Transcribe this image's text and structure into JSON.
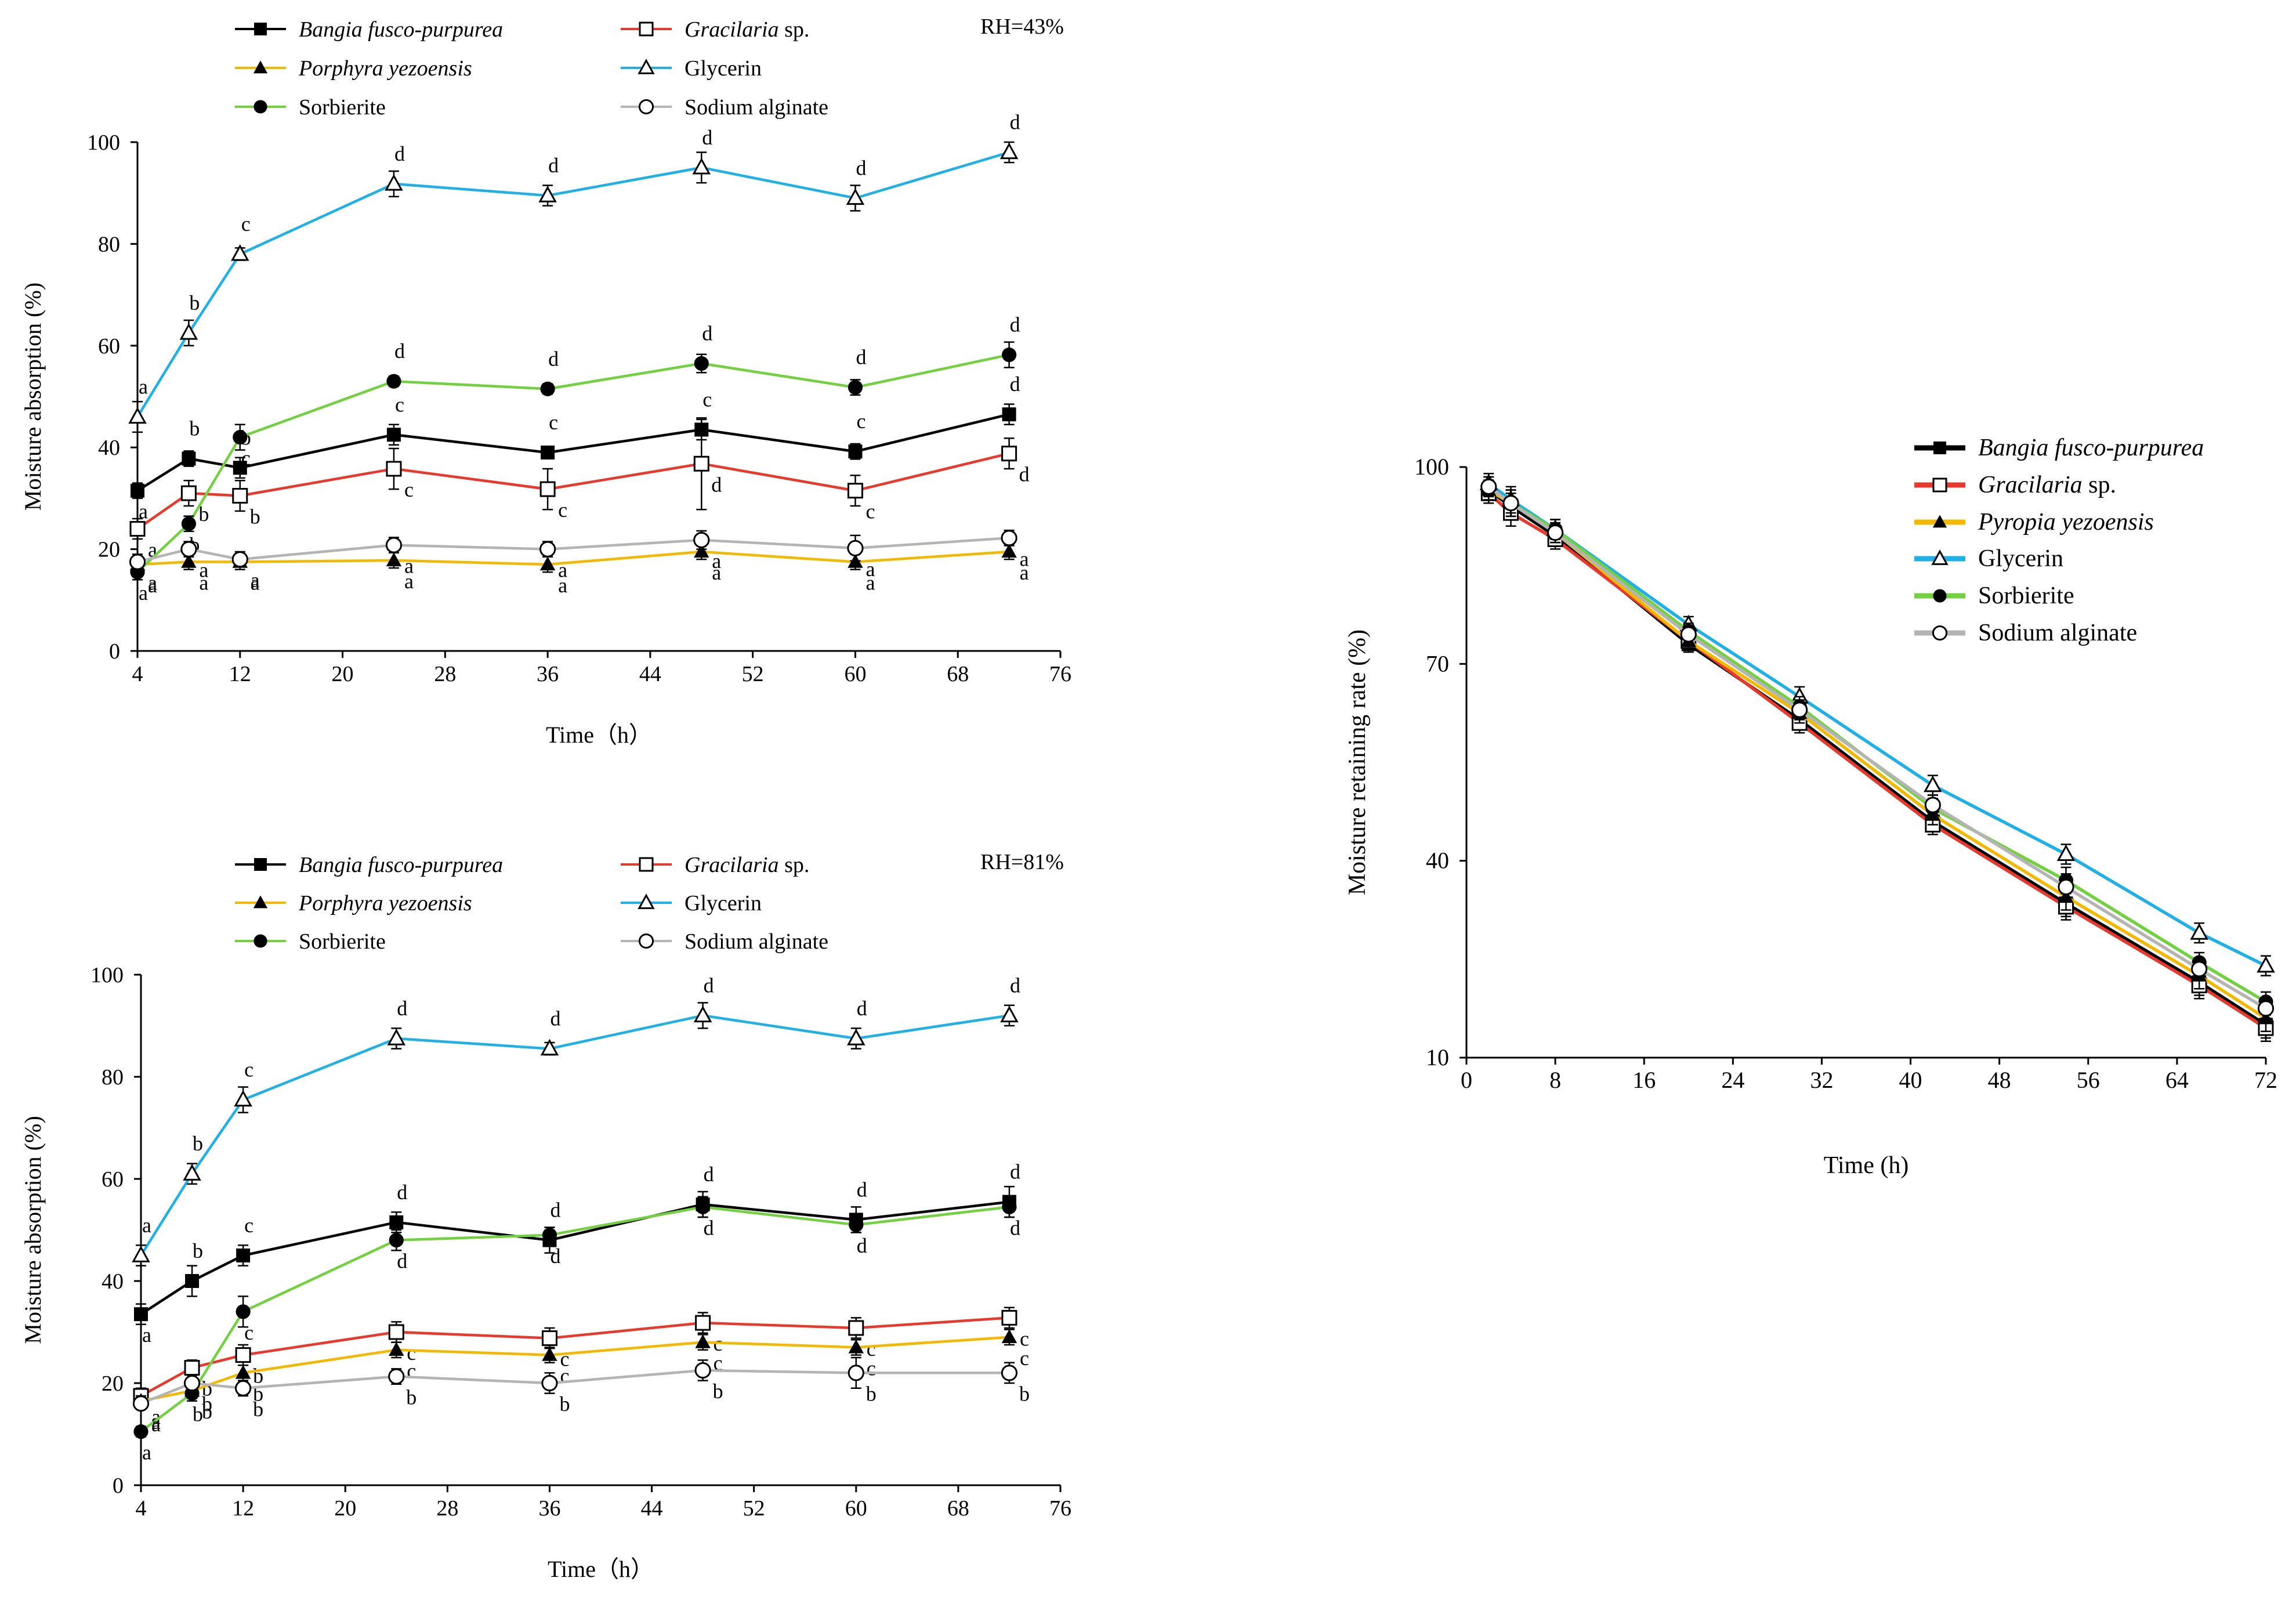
{
  "chart_data": [
    {
      "id": "top",
      "type": "line",
      "annotation": "RH=43%",
      "xlabel": "Time（h）",
      "ylabel": "Moisture absorption (%)",
      "xlim": [
        4,
        76
      ],
      "xticks": [
        4,
        12,
        20,
        28,
        36,
        44,
        52,
        60,
        68,
        76
      ],
      "ylim": [
        0,
        100
      ],
      "yticks": [
        0,
        20,
        40,
        60,
        80,
        100
      ],
      "x": [
        4,
        8,
        12,
        24,
        36,
        48,
        60,
        72
      ],
      "legend": [
        {
          "name": "Bangia fusco-purpurea",
          "italic": true
        },
        {
          "name": "Gracilaria",
          "italic": true,
          "suffix": " sp."
        },
        {
          "name": "Porphyra yezoensis",
          "italic": true
        },
        {
          "name": "Glycerin",
          "italic": false
        },
        {
          "name": "Sorbierite",
          "italic": false
        },
        {
          "name": "Sodium alginate",
          "italic": false
        }
      ],
      "series": [
        {
          "name": "Bangia fusco-purpurea",
          "color": "#000000",
          "marker": "square-filled",
          "values": [
            31.5,
            37.8,
            36.0,
            42.5,
            39.0,
            43.5,
            39.2,
            46.5
          ],
          "errors": [
            1.5,
            1.5,
            2,
            2,
            1.2,
            2,
            1.5,
            2
          ],
          "labels": [
            "a",
            "b",
            "b",
            "c",
            "c",
            "c",
            "c",
            "d"
          ]
        },
        {
          "name": "Gracilaria sp.",
          "color": "#e8392c",
          "marker": "square-open",
          "values": [
            24.0,
            31.0,
            30.5,
            35.8,
            31.8,
            36.8,
            31.5,
            38.8
          ],
          "errors": [
            2,
            2.5,
            3,
            4,
            4,
            9,
            3,
            3
          ],
          "labels": [
            "a",
            "b",
            "b",
            "c",
            "c",
            "d",
            "c",
            "d"
          ]
        },
        {
          "name": "Porphyra yezoensis",
          "color": "#f5b800",
          "marker": "triangle-filled",
          "values": [
            17.0,
            17.5,
            17.5,
            17.8,
            17.0,
            19.5,
            17.5,
            19.5
          ],
          "errors": [
            1,
            1.5,
            1.5,
            1.5,
            1.5,
            1.5,
            1.5,
            1.5
          ],
          "labels": [
            "a",
            "a",
            "a",
            "a",
            "a",
            "a",
            "a",
            "a"
          ]
        },
        {
          "name": "Glycerin",
          "color": "#1eb0e6",
          "marker": "triangle-open",
          "values": [
            46.0,
            62.5,
            78.0,
            91.8,
            89.5,
            95.0,
            89.0,
            98.0
          ],
          "errors": [
            3,
            2.5,
            1.2,
            2.5,
            2,
            3,
            2.5,
            2
          ],
          "labels": [
            "a",
            "b",
            "c",
            "d",
            "d",
            "d",
            "d",
            "d"
          ]
        },
        {
          "name": "Sorbierite",
          "color": "#72d13f",
          "marker": "circle-filled",
          "values": [
            15.5,
            25.0,
            42.0,
            53.0,
            51.5,
            56.5,
            51.8,
            58.2
          ],
          "errors": [
            1.5,
            1.5,
            2.5,
            1,
            1,
            1.8,
            1.5,
            2.5
          ],
          "labels": [
            "a",
            "b",
            "c",
            "d",
            "d",
            "d",
            "d",
            "d"
          ]
        },
        {
          "name": "Sodium alginate",
          "color": "#b4b4b4",
          "marker": "circle-open",
          "values": [
            17.5,
            20.0,
            18.0,
            20.8,
            20.0,
            21.8,
            20.2,
            22.2
          ],
          "errors": [
            1.5,
            1.5,
            1.5,
            1.5,
            1.5,
            1.8,
            2.5,
            1.5
          ],
          "labels": [
            "a",
            "a",
            "a",
            "a",
            "a",
            "a",
            "a",
            "a"
          ]
        }
      ]
    },
    {
      "id": "bottom",
      "type": "line",
      "annotation": "RH=81%",
      "xlabel": "Time（h）",
      "ylabel": "Moisture absorption (%)",
      "xlim": [
        4,
        76
      ],
      "xticks": [
        4,
        12,
        20,
        28,
        36,
        44,
        52,
        60,
        68,
        76
      ],
      "ylim": [
        0,
        100
      ],
      "yticks": [
        0,
        20,
        40,
        60,
        80,
        100
      ],
      "x": [
        4,
        8,
        12,
        24,
        36,
        48,
        60,
        72
      ],
      "legend": [
        {
          "name": "Bangia fusco-purpurea",
          "italic": true
        },
        {
          "name": "Gracilaria",
          "italic": true,
          "suffix": " sp."
        },
        {
          "name": "Porphyra yezoensis",
          "italic": true
        },
        {
          "name": "Glycerin",
          "italic": false
        },
        {
          "name": "Sorbierite",
          "italic": false
        },
        {
          "name": "Sodium alginate",
          "italic": false
        }
      ],
      "series": [
        {
          "name": "Bangia fusco-purpurea",
          "color": "#000000",
          "marker": "square-filled",
          "values": [
            33.5,
            40.0,
            45.0,
            51.5,
            48.0,
            55.0,
            52.0,
            55.5
          ],
          "errors": [
            2,
            3,
            2,
            2,
            2.5,
            2.5,
            2.5,
            3
          ],
          "labels": [
            "a",
            "b",
            "c",
            "d",
            "d",
            "d",
            "d",
            "d"
          ]
        },
        {
          "name": "Gracilaria sp.",
          "color": "#e8392c",
          "marker": "square-open",
          "values": [
            17.5,
            23.0,
            25.5,
            30.0,
            28.8,
            31.8,
            30.8,
            32.8
          ],
          "errors": [
            1.5,
            1.5,
            2,
            2,
            2,
            2,
            2,
            2
          ],
          "labels": [
            "a",
            "b",
            "b",
            "c",
            "c",
            "c",
            "c",
            "c"
          ]
        },
        {
          "name": "Porphyra yezoensis",
          "color": "#f5b800",
          "marker": "triangle-filled",
          "values": [
            16.5,
            18.5,
            22.0,
            26.5,
            25.5,
            28.0,
            27.0,
            29.0
          ],
          "errors": [
            1,
            1.5,
            1.5,
            1.5,
            1.5,
            1.5,
            1.5,
            1.5
          ],
          "labels": [
            "a",
            "b",
            "b",
            "c",
            "c",
            "c",
            "c",
            "c"
          ]
        },
        {
          "name": "Glycerin",
          "color": "#1eb0e6",
          "marker": "triangle-open",
          "values": [
            45.0,
            61.0,
            75.5,
            87.5,
            85.5,
            92.0,
            87.5,
            92.0
          ],
          "errors": [
            2,
            2,
            2.5,
            2,
            1.2,
            2.5,
            2,
            2
          ],
          "labels": [
            "a",
            "b",
            "c",
            "d",
            "d",
            "d",
            "d",
            "d"
          ]
        },
        {
          "name": "Sorbierite",
          "color": "#72d13f",
          "marker": "circle-filled",
          "values": [
            10.5,
            18.0,
            34.0,
            48.0,
            49.0,
            54.5,
            51.0,
            54.5
          ],
          "errors": [
            1,
            1.5,
            3,
            2,
            1.5,
            2,
            1.5,
            2
          ],
          "labels": [
            "a",
            "b",
            "c",
            "d",
            "d",
            "d",
            "d",
            "d"
          ]
        },
        {
          "name": "Sodium alginate",
          "color": "#b4b4b4",
          "marker": "circle-open",
          "values": [
            16.0,
            20.0,
            19.0,
            21.3,
            20.0,
            22.5,
            22.0,
            22.0
          ],
          "errors": [
            1,
            1.5,
            1.5,
            1.5,
            2,
            2,
            3,
            2
          ],
          "labels": [
            "a",
            "b",
            "b",
            "b",
            "b",
            "b",
            "b",
            "b"
          ]
        }
      ]
    },
    {
      "id": "right",
      "type": "line",
      "xlabel": "Time (h)",
      "ylabel": "Moisture retaining rate (%)",
      "xlim": [
        0,
        72
      ],
      "xticks": [
        0,
        8,
        16,
        24,
        32,
        40,
        48,
        56,
        64,
        72
      ],
      "ylim": [
        10,
        100
      ],
      "yticks": [
        10,
        40,
        70,
        100
      ],
      "x": [
        2,
        4,
        8,
        20,
        30,
        42,
        54,
        66,
        72
      ],
      "legend": [
        {
          "name": "Bangia fusco-purpurea",
          "italic": true
        },
        {
          "name": "Gracilaria",
          "italic": true,
          "suffix": " sp."
        },
        {
          "name": "Pyropia yezoensis",
          "italic": true
        },
        {
          "name": "Glycerin",
          "italic": false
        },
        {
          "name": "Sorbierite",
          "italic": false
        },
        {
          "name": "Sodium alginate",
          "italic": false
        }
      ],
      "series": [
        {
          "name": "Bangia fusco-purpurea",
          "color": "#000000",
          "marker": "square-filled",
          "values": [
            96.5,
            94.0,
            89.5,
            73.0,
            61.5,
            46.0,
            33.5,
            21.5,
            15.0
          ],
          "errors": [
            1.5,
            2,
            1.5,
            1.2,
            1.5,
            1.5,
            2,
            2,
            2
          ]
        },
        {
          "name": "Gracilaria sp.",
          "color": "#e8392c",
          "marker": "square-open",
          "values": [
            96.0,
            93.0,
            89.0,
            73.5,
            61.0,
            45.5,
            33.0,
            21.0,
            14.5
          ],
          "errors": [
            1.5,
            2,
            1.5,
            1.2,
            1.5,
            1.5,
            2,
            2,
            2
          ]
        },
        {
          "name": "Pyropia yezoensis",
          "color": "#f5b800",
          "marker": "triangle-filled",
          "values": [
            96.5,
            94.5,
            90.0,
            73.5,
            62.5,
            47.0,
            34.5,
            22.5,
            16.0
          ],
          "errors": [
            1.5,
            2,
            1.5,
            1.2,
            1.5,
            1.5,
            2,
            2,
            2
          ]
        },
        {
          "name": "Glycerin",
          "color": "#1eb0e6",
          "marker": "triangle-open",
          "values": [
            97.5,
            95.0,
            90.5,
            76.0,
            65.0,
            51.5,
            41.0,
            29.0,
            24.0
          ],
          "errors": [
            1.5,
            2,
            1.5,
            1.2,
            1.5,
            1.5,
            1.5,
            1.5,
            1.5
          ]
        },
        {
          "name": "Sorbierite",
          "color": "#72d13f",
          "marker": "circle-filled",
          "values": [
            97.0,
            94.5,
            90.5,
            75.0,
            63.5,
            48.0,
            37.0,
            24.5,
            18.5
          ],
          "errors": [
            1.5,
            2,
            1.5,
            1.2,
            1.5,
            1.5,
            2,
            1.5,
            1.5
          ]
        },
        {
          "name": "Sodium alginate",
          "color": "#b4b4b4",
          "marker": "circle-open",
          "values": [
            97.0,
            94.5,
            90.0,
            74.5,
            63.0,
            48.5,
            36.0,
            23.5,
            17.5
          ],
          "errors": [
            1.5,
            2,
            1.5,
            1.2,
            1.5,
            1.5,
            2,
            1.5,
            1.5
          ]
        }
      ]
    }
  ]
}
